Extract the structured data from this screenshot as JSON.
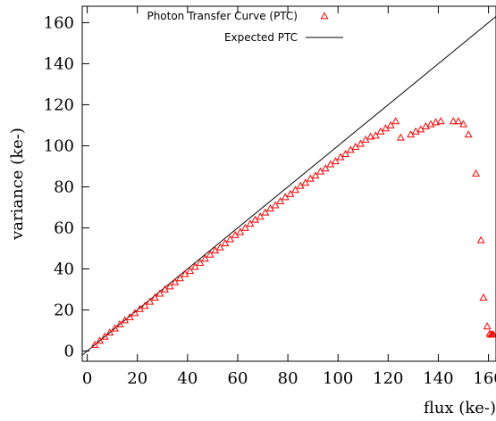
{
  "chart_data": {
    "type": "scatter",
    "title": "",
    "xlabel": "flux (ke-)",
    "ylabel": "variance (ke-)",
    "xlim": [
      -2,
      163
    ],
    "ylim": [
      -5,
      168
    ],
    "x_ticks": [
      0,
      20,
      40,
      60,
      80,
      100,
      120,
      140,
      160
    ],
    "y_ticks": [
      0,
      20,
      40,
      60,
      80,
      100,
      120,
      140,
      160
    ],
    "tick_labels_x": [
      "0",
      "20",
      "40",
      "60",
      "80",
      "100",
      "120",
      "140",
      "160"
    ],
    "tick_labels_y": [
      "0",
      "20",
      "40",
      "60",
      "80",
      "100",
      "120",
      "140",
      "160"
    ],
    "grid": false,
    "legend_position": "top-center",
    "series": [
      {
        "name": "Photon Transfer Curve (PTC)",
        "kind": "scatter",
        "marker": "triangle",
        "color": "#ff0000",
        "x": [
          3,
          5,
          7,
          9,
          11,
          13,
          15,
          17,
          19,
          21,
          23,
          25,
          27,
          29,
          31,
          33,
          35,
          37,
          39,
          41,
          43,
          45,
          47,
          49,
          51,
          53,
          55,
          57,
          59,
          61,
          63,
          65,
          67,
          69,
          71,
          73,
          75,
          77,
          79,
          81,
          83,
          85,
          87,
          89,
          91,
          93,
          95,
          97,
          99,
          101,
          103,
          105,
          107,
          109,
          111,
          113,
          115,
          117,
          119,
          121,
          123,
          125,
          129,
          131,
          133,
          135,
          137,
          139,
          141,
          146,
          148,
          150,
          152,
          155,
          157,
          158,
          159.5,
          160.5,
          161,
          161.5,
          162,
          162.5,
          163
        ],
        "y": [
          3,
          5,
          7,
          9,
          11,
          13,
          15,
          16.5,
          18.5,
          20.5,
          22,
          24,
          26,
          28,
          30,
          31.5,
          33.5,
          35.5,
          37.5,
          39,
          41,
          43,
          45,
          47,
          49,
          50.5,
          52.5,
          54.5,
          56.5,
          58,
          60,
          62,
          64,
          65.5,
          67.5,
          69.5,
          71,
          73,
          75,
          76.5,
          78.5,
          80.5,
          82,
          84,
          85.5,
          87.5,
          89,
          91,
          92.5,
          94.5,
          96,
          98,
          99.5,
          101,
          103,
          104.5,
          105,
          107,
          108.5,
          110,
          112,
          104,
          105.5,
          107,
          108,
          109.5,
          110.5,
          111.5,
          112,
          112,
          112,
          110.5,
          105.5,
          86.5,
          54,
          26,
          12,
          8.5,
          8,
          8,
          8,
          8,
          8
        ]
      },
      {
        "name": "Expected PTC",
        "kind": "line",
        "color": "#000000",
        "x": [
          -2,
          163
        ],
        "y": [
          -2,
          163
        ]
      }
    ]
  }
}
